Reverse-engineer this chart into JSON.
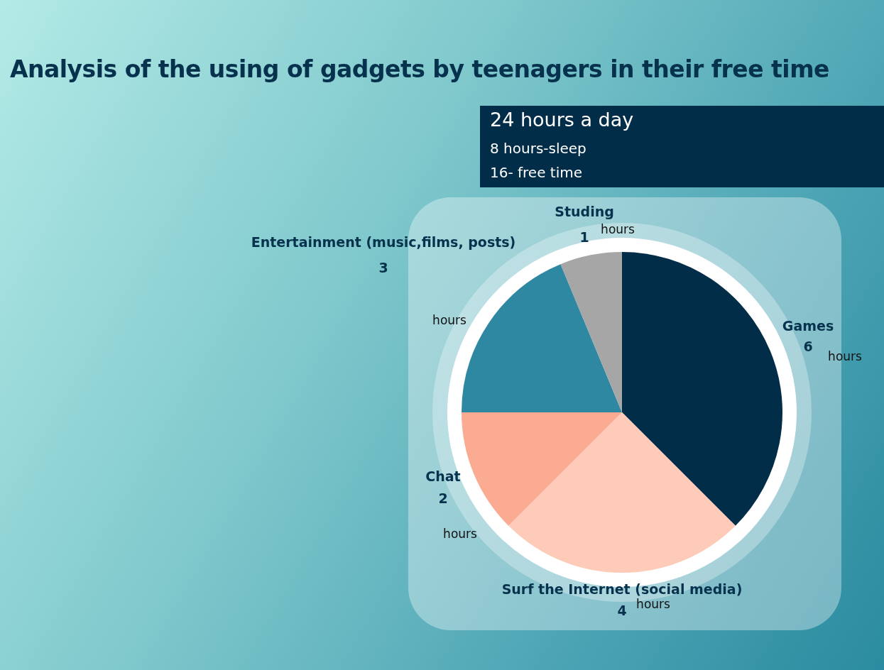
{
  "chart_data": {
    "type": "pie",
    "title": "Analysis of the using of gadgets by teenagers in their free time",
    "categories": [
      "Games",
      "Surf the Internet (social media)",
      "Chat",
      "Entertainment (music,films, posts)",
      "Studing"
    ],
    "values": [
      6,
      4,
      2,
      3,
      1
    ],
    "colors": [
      "#022d48",
      "#fdcbb8",
      "#fbab91",
      "#2f88a1",
      "#a6a6a6"
    ],
    "data_labels": true,
    "legend": false,
    "annotations": [
      "24 hours a day",
      "8 hours-sleep",
      "16- free time",
      "hours",
      "hours",
      "hours",
      "hours",
      "hours"
    ]
  }
}
